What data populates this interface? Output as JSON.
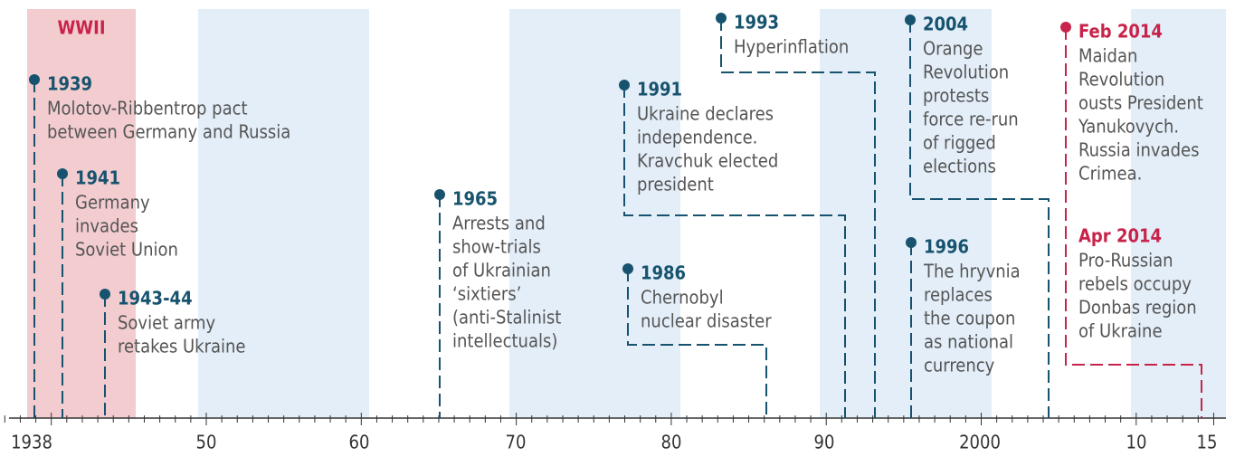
{
  "wwii_label": "WWII",
  "axis": {
    "ticks": [
      "1938",
      "50",
      "60",
      "70",
      "80",
      "90",
      "2000",
      "10",
      "15"
    ]
  },
  "events": [
    {
      "year": "1939",
      "lines": [
        "Molotov-Ribbentrop pact",
        "between Germany and Russia"
      ]
    },
    {
      "year": "1941",
      "lines": [
        "Germany",
        "invades",
        "Soviet Union"
      ]
    },
    {
      "year": "1943-44",
      "lines": [
        "Soviet army",
        "retakes Ukraine"
      ]
    },
    {
      "year": "1965",
      "lines": [
        "Arrests and",
        "show-trials",
        "of Ukrainian",
        "‘sixtiers’",
        "(anti-Stalinist",
        "intellectuals)"
      ]
    },
    {
      "year": "1986",
      "lines": [
        "Chernobyl",
        "nuclear disaster"
      ]
    },
    {
      "year": "1991",
      "lines": [
        "Ukraine declares",
        "independence.",
        "Kravchuk elected",
        "president"
      ]
    },
    {
      "year": "1993",
      "lines": [
        "Hyperinflation"
      ]
    },
    {
      "year": "1996",
      "lines": [
        "The hryvnia",
        "replaces",
        "the coupon",
        "as national",
        "currency"
      ]
    },
    {
      "year": "2004",
      "lines": [
        "Orange",
        "Revolution",
        "protests",
        "force re-run",
        "of rigged",
        "elections"
      ]
    },
    {
      "year": "Feb 2014",
      "lines": [
        "Maidan",
        "Revolution",
        "ousts President",
        "Yanukovych.",
        "Russia invades",
        "Crimea."
      ]
    },
    {
      "year": "Apr 2014",
      "lines": [
        "Pro-Russian",
        "rebels occupy",
        "Donbas region",
        "of Ukraine"
      ]
    }
  ]
}
